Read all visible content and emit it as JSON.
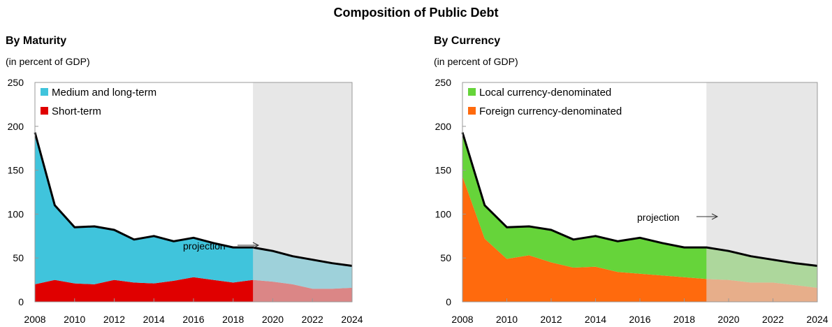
{
  "title": "Composition of Public Debt",
  "chart_data": [
    {
      "type": "area",
      "panel_title": "By Maturity",
      "subtitle": "(in percent of GDP)",
      "x": [
        2008,
        2009,
        2010,
        2011,
        2012,
        2013,
        2014,
        2015,
        2016,
        2017,
        2018,
        2019,
        2020,
        2021,
        2022,
        2023,
        2024
      ],
      "xticks": [
        "2008",
        "2010",
        "2012",
        "2014",
        "2016",
        "2018",
        "2020",
        "2022",
        "2024"
      ],
      "yticks": [
        "0",
        "50",
        "100",
        "150",
        "200",
        "250"
      ],
      "ylim": [
        0,
        250
      ],
      "xlim": [
        2008,
        2024
      ],
      "stacked": true,
      "series": [
        {
          "name": "Short-term",
          "color": "#e00000",
          "values": [
            20,
            25,
            21,
            20,
            25,
            22,
            21,
            24,
            28,
            25,
            22,
            25,
            23,
            20,
            15,
            15,
            16
          ]
        },
        {
          "name": "Medium and long-term",
          "color": "#40c4dc",
          "values": [
            173,
            85,
            64,
            66,
            57,
            49,
            54,
            45,
            45,
            42,
            40,
            37,
            35,
            32,
            33,
            29,
            25
          ]
        }
      ],
      "total": [
        193,
        110,
        85,
        86,
        82,
        71,
        75,
        69,
        73,
        67,
        62,
        62,
        58,
        52,
        48,
        44,
        41
      ],
      "total_color": "#000000",
      "projection_start": 2019,
      "projection_label": "projection",
      "projection_color": "#d9d9d9",
      "legend": "top-left",
      "grid": false
    },
    {
      "type": "area",
      "panel_title": "By Currency",
      "subtitle": "(in percent of GDP)",
      "x": [
        2008,
        2009,
        2010,
        2011,
        2012,
        2013,
        2014,
        2015,
        2016,
        2017,
        2018,
        2019,
        2020,
        2021,
        2022,
        2023,
        2024
      ],
      "xticks": [
        "2008",
        "2010",
        "2012",
        "2014",
        "2016",
        "2018",
        "2020",
        "2022",
        "2024"
      ],
      "yticks": [
        "0",
        "50",
        "100",
        "150",
        "200",
        "250"
      ],
      "ylim": [
        0,
        250
      ],
      "xlim": [
        2008,
        2024
      ],
      "stacked": true,
      "series": [
        {
          "name": "Foreign currency-denominated",
          "color": "#ff6a0d",
          "values": [
            143,
            72,
            49,
            53,
            45,
            39,
            40,
            34,
            32,
            30,
            28,
            26,
            25,
            22,
            22,
            19,
            16
          ]
        },
        {
          "name": "Local currency-denominated",
          "color": "#66d43a",
          "values": [
            50,
            38,
            36,
            33,
            37,
            32,
            35,
            35,
            41,
            37,
            34,
            36,
            33,
            30,
            26,
            25,
            25
          ]
        }
      ],
      "total": [
        193,
        110,
        85,
        86,
        82,
        71,
        75,
        69,
        73,
        67,
        62,
        62,
        58,
        52,
        48,
        44,
        41
      ],
      "total_color": "#000000",
      "projection_start": 2019,
      "projection_label": "projection",
      "projection_color": "#d9d9d9",
      "legend": "top-left",
      "grid": false
    }
  ]
}
